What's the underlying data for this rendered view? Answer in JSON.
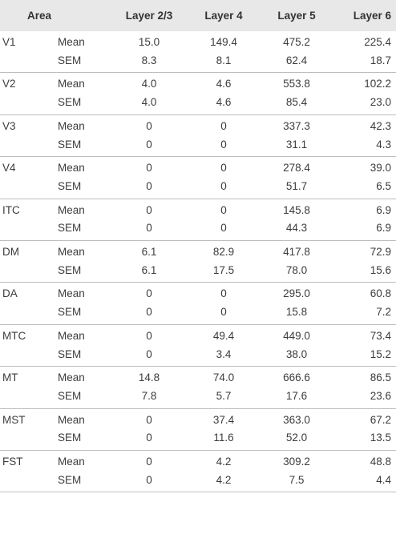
{
  "header": {
    "area": "Area",
    "layer23": "Layer 2/3",
    "layer4": "Layer 4",
    "layer5": "Layer 5",
    "layer6": "Layer 6"
  },
  "rows": [
    {
      "area": "V1",
      "mean": [
        "15.0",
        "149.4",
        "475.2",
        "225.4"
      ],
      "sem": [
        "8.3",
        "8.1",
        "62.4",
        "18.7"
      ]
    },
    {
      "area": "V2",
      "mean": [
        "4.0",
        "4.6",
        "553.8",
        "102.2"
      ],
      "sem": [
        "4.0",
        "4.6",
        "85.4",
        "23.0"
      ]
    },
    {
      "area": "V3",
      "mean": [
        "0",
        "0",
        "337.3",
        "42.3"
      ],
      "sem": [
        "0",
        "0",
        "31.1",
        "4.3"
      ]
    },
    {
      "area": "V4",
      "mean": [
        "0",
        "0",
        "278.4",
        "39.0"
      ],
      "sem": [
        "0",
        "0",
        "51.7",
        "6.5"
      ]
    },
    {
      "area": "ITC",
      "mean": [
        "0",
        "0",
        "145.8",
        "6.9"
      ],
      "sem": [
        "0",
        "0",
        "44.3",
        "6.9"
      ]
    },
    {
      "area": "DM",
      "mean": [
        "6.1",
        "82.9",
        "417.8",
        "72.9"
      ],
      "sem": [
        "6.1",
        "17.5",
        "78.0",
        "15.6"
      ]
    },
    {
      "area": "DA",
      "mean": [
        "0",
        "0",
        "295.0",
        "60.8"
      ],
      "sem": [
        "0",
        "0",
        "15.8",
        "7.2"
      ]
    },
    {
      "area": "MTC",
      "mean": [
        "0",
        "49.4",
        "449.0",
        "73.4"
      ],
      "sem": [
        "0",
        "3.4",
        "38.0",
        "15.2"
      ]
    },
    {
      "area": "MT",
      "mean": [
        "14.8",
        "74.0",
        "666.6",
        "86.5"
      ],
      "sem": [
        "7.8",
        "5.7",
        "17.6",
        "23.6"
      ]
    },
    {
      "area": "MST",
      "mean": [
        "0",
        "37.4",
        "363.0",
        "67.2"
      ],
      "sem": [
        "0",
        "11.6",
        "52.0",
        "13.5"
      ]
    },
    {
      "area": "FST",
      "mean": [
        "0",
        "4.2",
        "309.2",
        "48.8"
      ],
      "sem": [
        "0",
        "4.2",
        "7.5",
        "4.4"
      ]
    }
  ],
  "labels": {
    "mean": "Mean",
    "sem": "SEM"
  }
}
